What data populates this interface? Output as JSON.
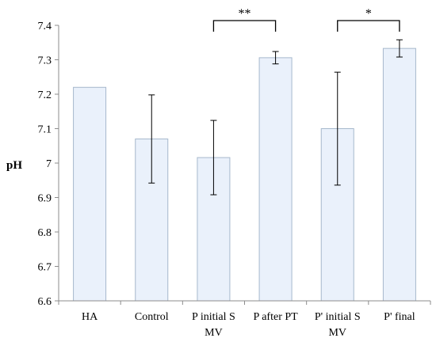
{
  "chart_data": {
    "type": "bar",
    "title": "",
    "xlabel": "",
    "ylabel": "pH",
    "ylim": [
      6.6,
      7.4
    ],
    "yticks": [
      "6.6",
      "6.7",
      "6.8",
      "6.9",
      "7",
      "7.1",
      "7.2",
      "7.3",
      "7.4"
    ],
    "grid": false,
    "categories": [
      [
        "HA"
      ],
      [
        "Control"
      ],
      [
        "P initial S",
        "MV"
      ],
      [
        "P after PT"
      ],
      [
        "P' initial S",
        "MV"
      ],
      [
        "P' final"
      ]
    ],
    "values": [
      7.22,
      7.07,
      7.016,
      7.306,
      7.1,
      7.333
    ],
    "errors": [
      0.0,
      0.128,
      0.108,
      0.018,
      0.164,
      0.025
    ],
    "bar_fill": "#eaf1fb",
    "bar_stroke": "#a6b8cc",
    "significance": [
      {
        "from": 2,
        "to": 3,
        "label": "**"
      },
      {
        "from": 4,
        "to": 5,
        "label": "*"
      }
    ]
  }
}
